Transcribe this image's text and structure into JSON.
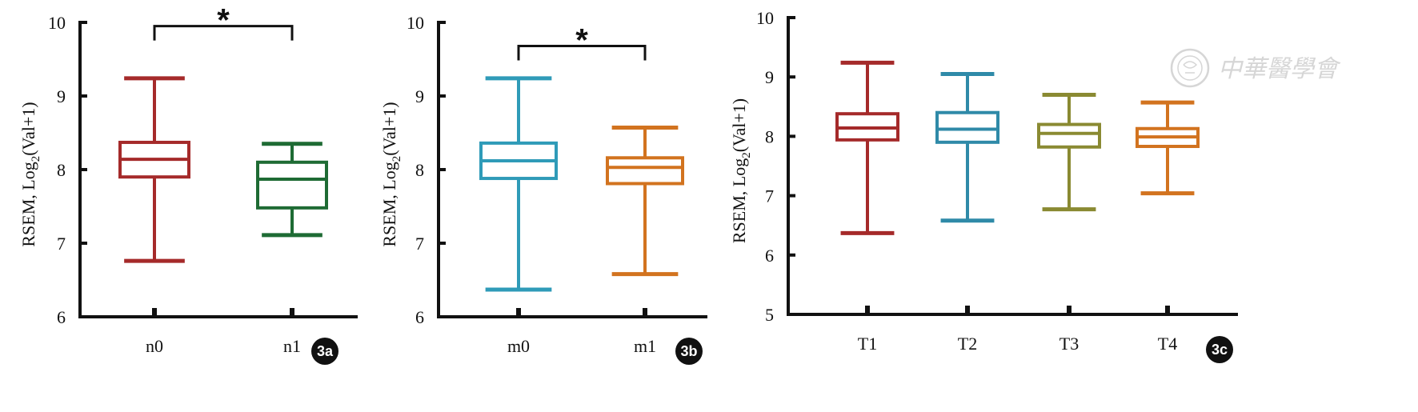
{
  "chart_data": [
    {
      "id": "3a",
      "type": "box",
      "badge": "3a",
      "ylabel": "RSEM, Log",
      "ylabel_sub": "2",
      "ylabel_tail": "(Val+1)",
      "ylim": [
        6,
        10
      ],
      "yticks": [
        6,
        7,
        8,
        9,
        10
      ],
      "categories": [
        "n0",
        "n1"
      ],
      "boxes": [
        {
          "label": "n0",
          "min": 6.76,
          "q1": 7.9,
          "median": 8.14,
          "q3": 8.37,
          "max": 9.24,
          "color": "#a52a2a"
        },
        {
          "label": "n1",
          "min": 7.11,
          "q1": 7.48,
          "median": 7.87,
          "q3": 8.1,
          "max": 8.35,
          "color": "#1e6b34"
        }
      ],
      "significance": {
        "from": 0,
        "to": 1,
        "symbol": "*",
        "y": 9.95
      }
    },
    {
      "id": "3b",
      "type": "box",
      "badge": "3b",
      "ylabel": "RSEM, Log",
      "ylabel_sub": "2",
      "ylabel_tail": "(Val+1)",
      "ylim": [
        6,
        10
      ],
      "yticks": [
        6,
        7,
        8,
        9,
        10
      ],
      "categories": [
        "m0",
        "m1"
      ],
      "boxes": [
        {
          "label": "m0",
          "min": 6.37,
          "q1": 7.88,
          "median": 8.12,
          "q3": 8.36,
          "max": 9.24,
          "color": "#2f9bb8"
        },
        {
          "label": "m1",
          "min": 6.58,
          "q1": 7.81,
          "median": 8.03,
          "q3": 8.16,
          "max": 8.57,
          "color": "#d2731f"
        }
      ],
      "significance": {
        "from": 0,
        "to": 1,
        "symbol": "*",
        "y": 9.68
      }
    },
    {
      "id": "3c",
      "type": "box",
      "badge": "3c",
      "ylabel": "RSEM, Log",
      "ylabel_sub": "2",
      "ylabel_tail": "(Val+1)",
      "ylim": [
        5,
        10
      ],
      "yticks": [
        5,
        6,
        7,
        8,
        9,
        10
      ],
      "categories": [
        "T1",
        "T2",
        "T3",
        "T4"
      ],
      "boxes": [
        {
          "label": "T1",
          "min": 6.37,
          "q1": 7.94,
          "median": 8.14,
          "q3": 8.38,
          "max": 9.24,
          "color": "#a52a2a"
        },
        {
          "label": "T2",
          "min": 6.58,
          "q1": 7.9,
          "median": 8.12,
          "q3": 8.4,
          "max": 9.05,
          "color": "#2f8aa8"
        },
        {
          "label": "T3",
          "min": 6.77,
          "q1": 7.82,
          "median": 8.05,
          "q3": 8.2,
          "max": 8.7,
          "color": "#8a8a32"
        },
        {
          "label": "T4",
          "min": 7.04,
          "q1": 7.83,
          "median": 7.99,
          "q3": 8.13,
          "max": 8.57,
          "color": "#d2731f"
        }
      ]
    }
  ],
  "watermark": {
    "text": "中華醫學會"
  }
}
